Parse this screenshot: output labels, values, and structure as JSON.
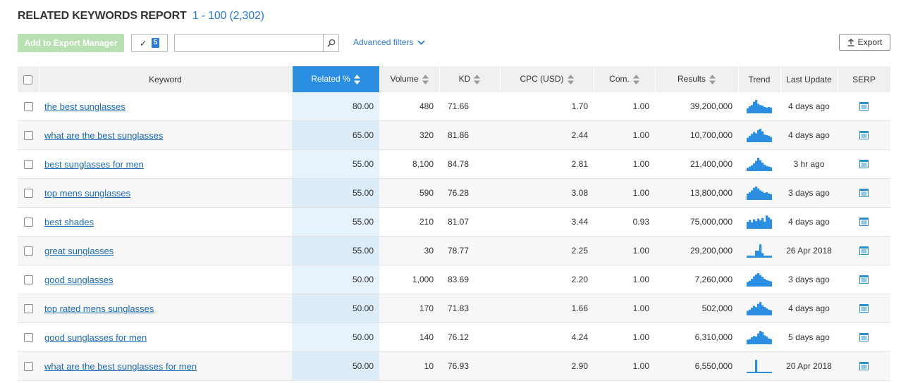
{
  "header": {
    "title": "RELATED KEYWORDS REPORT",
    "range": "1 - 100 (2,302)"
  },
  "toolbar": {
    "export_manager_label": "Add to Export Manager",
    "selected_count": "5",
    "search_value": "",
    "advanced_filters_label": "Advanced filters",
    "export_label": "Export"
  },
  "columns": {
    "keyword": "Keyword",
    "related": "Related %",
    "volume": "Volume",
    "kd": "KD",
    "cpc": "CPC (USD)",
    "com": "Com.",
    "results": "Results",
    "trend": "Trend",
    "last_update": "Last Update",
    "serp": "SERP"
  },
  "colors": {
    "accent": "#2b8ee0",
    "link": "#1a6ab8",
    "trend_bar": "#2b8ee0"
  },
  "rows": [
    {
      "keyword": "the best sunglasses",
      "related": "80.00",
      "volume": "480",
      "kd": "71.66",
      "cpc": "1.70",
      "com": "1.00",
      "results": "39,200,000",
      "last_update": "4 days ago",
      "trend": [
        0.35,
        0.5,
        0.6,
        0.85,
        1,
        0.7,
        0.6,
        0.55,
        0.45,
        0.4,
        0.45,
        0.4
      ]
    },
    {
      "keyword": "what are the best sunglasses",
      "related": "65.00",
      "volume": "320",
      "kd": "81.86",
      "cpc": "2.44",
      "com": "1.00",
      "results": "10,700,000",
      "last_update": "4 days ago",
      "trend": [
        0.3,
        0.45,
        0.6,
        0.75,
        0.65,
        0.9,
        1,
        0.8,
        0.55,
        0.5,
        0.45,
        0.35
      ]
    },
    {
      "keyword": "best sunglasses for men",
      "related": "55.00",
      "volume": "8,100",
      "kd": "84.78",
      "cpc": "2.81",
      "com": "1.00",
      "results": "21,400,000",
      "last_update": "3 hr ago",
      "trend": [
        0.2,
        0.3,
        0.4,
        0.55,
        0.75,
        1,
        0.8,
        0.6,
        0.45,
        0.35,
        0.3,
        0.25
      ]
    },
    {
      "keyword": "top mens sunglasses",
      "related": "55.00",
      "volume": "590",
      "kd": "76.28",
      "cpc": "3.08",
      "com": "1.00",
      "results": "13,800,000",
      "last_update": "3 days ago",
      "trend": [
        0.45,
        0.55,
        0.7,
        0.9,
        1,
        0.85,
        0.7,
        0.6,
        0.5,
        0.55,
        0.45,
        0.4
      ]
    },
    {
      "keyword": "best shades",
      "related": "55.00",
      "volume": "210",
      "kd": "81.07",
      "cpc": "3.44",
      "com": "0.93",
      "results": "75,000,000",
      "last_update": "4 days ago",
      "trend": [
        0.5,
        0.65,
        0.45,
        0.7,
        0.55,
        0.75,
        0.6,
        0.8,
        0.5,
        1,
        0.85,
        0.7
      ]
    },
    {
      "keyword": "great sunglasses",
      "related": "55.00",
      "volume": "30",
      "kd": "78.77",
      "cpc": "2.25",
      "com": "1.00",
      "results": "29,200,000",
      "last_update": "26 Apr 2018",
      "trend": [
        0.1,
        0.1,
        0.1,
        0.1,
        0.5,
        0.5,
        1,
        0.3,
        0.1,
        0.1,
        0.1,
        0.1
      ]
    },
    {
      "keyword": "good sunglasses",
      "related": "50.00",
      "volume": "1,000",
      "kd": "83.69",
      "cpc": "2.20",
      "com": "1.00",
      "results": "7,260,000",
      "last_update": "3 days ago",
      "trend": [
        0.3,
        0.4,
        0.55,
        0.75,
        0.9,
        1,
        0.85,
        0.7,
        0.55,
        0.45,
        0.4,
        0.35
      ]
    },
    {
      "keyword": "top rated mens sunglasses",
      "related": "50.00",
      "volume": "170",
      "kd": "71.83",
      "cpc": "1.66",
      "com": "1.00",
      "results": "502,000",
      "last_update": "4 days ago",
      "trend": [
        0.3,
        0.4,
        0.55,
        0.7,
        0.6,
        0.85,
        1,
        0.75,
        0.6,
        0.5,
        0.4,
        0.35
      ]
    },
    {
      "keyword": "good sunglasses for men",
      "related": "50.00",
      "volume": "140",
      "kd": "76.12",
      "cpc": "4.24",
      "com": "1.00",
      "results": "6,310,000",
      "last_update": "5 days ago",
      "trend": [
        0.3,
        0.35,
        0.5,
        0.6,
        0.55,
        0.8,
        1,
        0.9,
        0.65,
        0.55,
        0.4,
        0.35
      ]
    },
    {
      "keyword": "what are the best sunglasses for men",
      "related": "50.00",
      "volume": "10",
      "kd": "76.93",
      "cpc": "2.90",
      "com": "1.00",
      "results": "6,550,000",
      "last_update": "20 Apr 2018",
      "trend": [
        0.05,
        0.05,
        0.05,
        0.05,
        1,
        0.05,
        0.05,
        0.05,
        0.05,
        0.05,
        0.05,
        0.05
      ]
    }
  ]
}
